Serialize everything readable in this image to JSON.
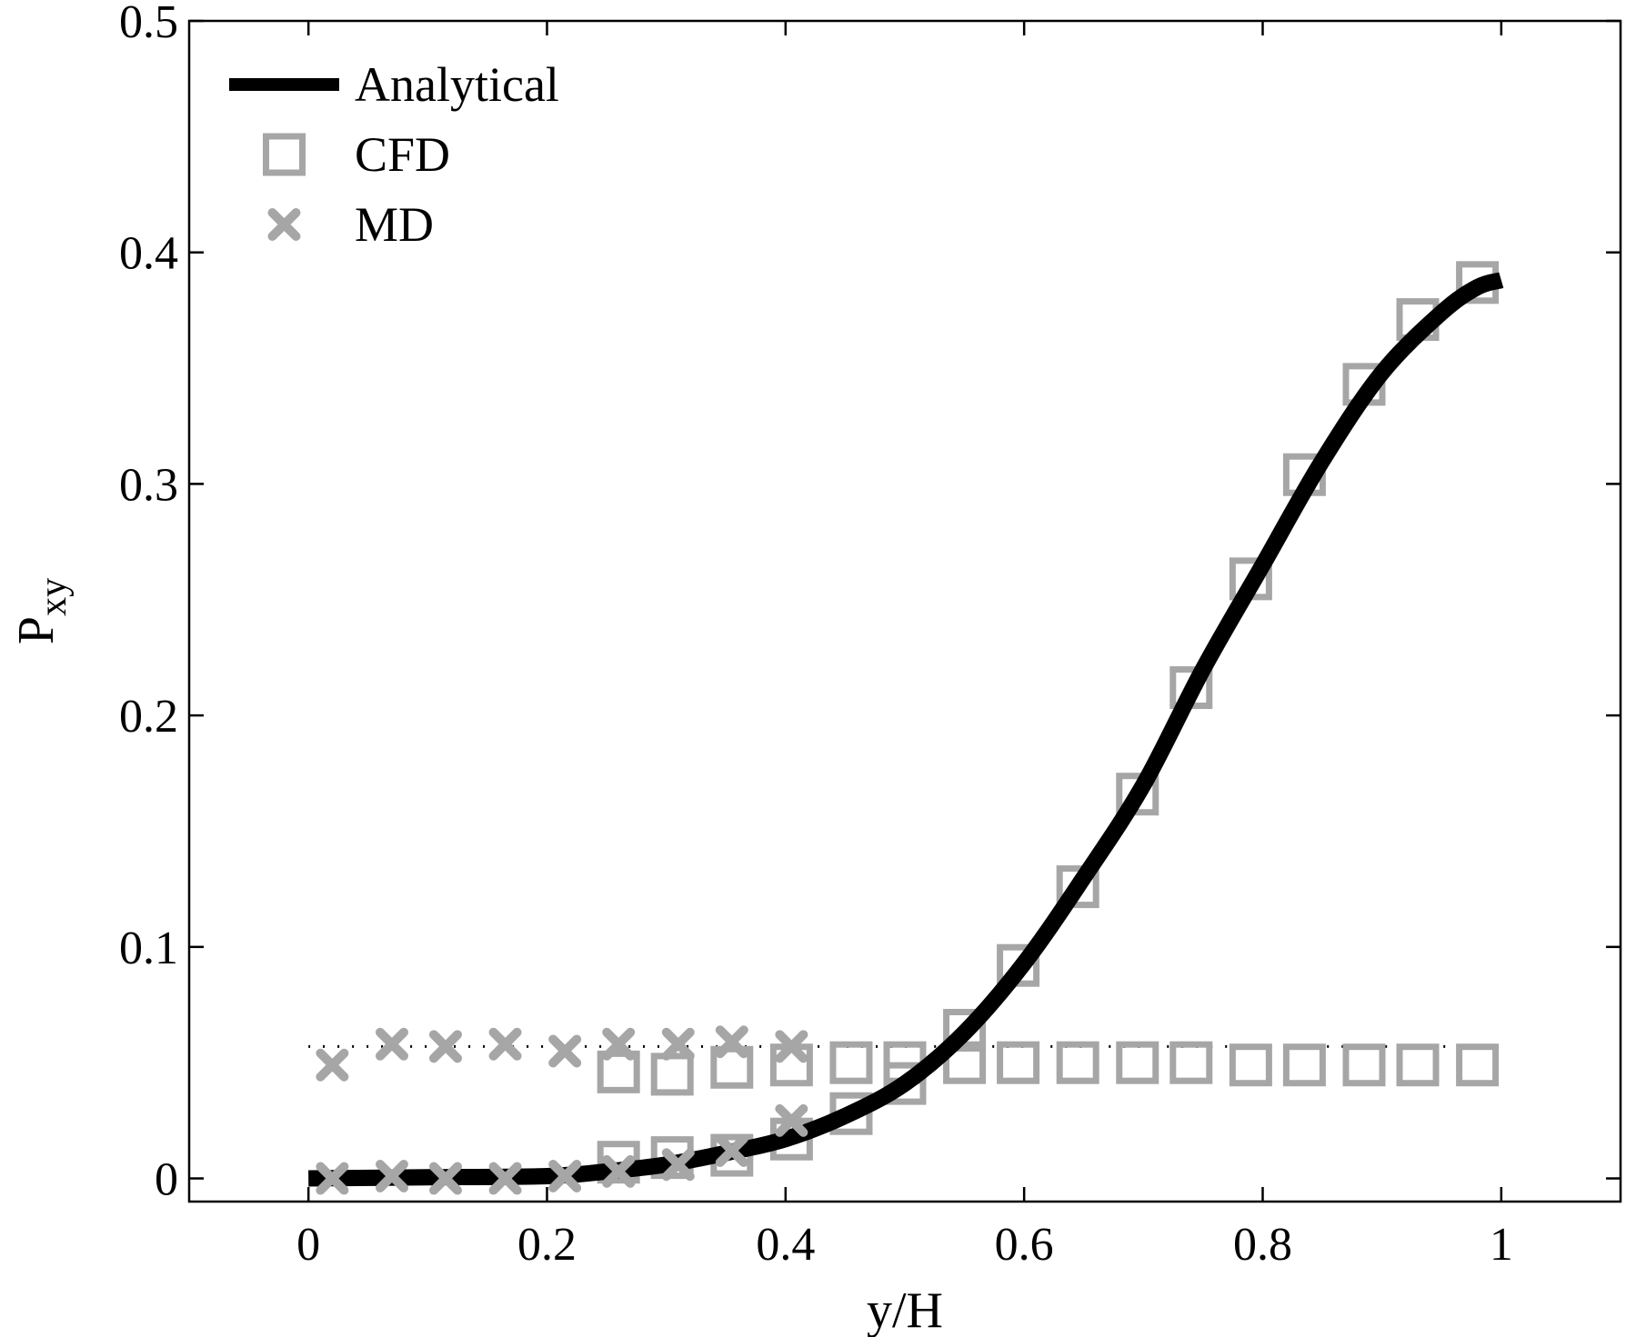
{
  "chart_data": {
    "type": "line",
    "xlabel": "y/H",
    "ylabel": {
      "base": "P",
      "subscript": "xy"
    },
    "xlim": [
      -0.1,
      1.1
    ],
    "ylim": [
      -0.01,
      0.5
    ],
    "xticks": [
      0,
      0.2,
      0.4,
      0.6,
      0.8,
      1
    ],
    "xtick_labels": [
      "0",
      "0.2",
      "0.4",
      "0.6",
      "0.8",
      "1"
    ],
    "yticks": [
      0,
      0.1,
      0.2,
      0.3,
      0.4,
      0.5
    ],
    "ytick_labels": [
      "0",
      "0.1",
      "0.2",
      "0.3",
      "0.4",
      "0.5"
    ],
    "grid": false,
    "legend_position": "top-left",
    "series": [
      {
        "name": "Analytical",
        "style": "line",
        "color": "#000000",
        "x": [
          0,
          0.1,
          0.2,
          0.25,
          0.3,
          0.35,
          0.4,
          0.45,
          0.5,
          0.55,
          0.6,
          0.65,
          0.7,
          0.75,
          0.8,
          0.85,
          0.9,
          0.95,
          0.98,
          1.0
        ],
        "y": [
          0,
          0.0005,
          0.001,
          0.003,
          0.006,
          0.011,
          0.017,
          0.027,
          0.041,
          0.063,
          0.093,
          0.13,
          0.17,
          0.22,
          0.265,
          0.31,
          0.348,
          0.374,
          0.385,
          0.388
        ]
      },
      {
        "name": "CFD",
        "style": "square",
        "color": "#a6a6a6",
        "x": [
          0.26,
          0.305,
          0.355,
          0.405,
          0.455,
          0.5,
          0.55,
          0.595,
          0.645,
          0.695,
          0.74,
          0.79,
          0.835,
          0.885,
          0.93,
          0.98
        ],
        "y": [
          0.007,
          0.009,
          0.01,
          0.017,
          0.028,
          0.041,
          0.064,
          0.092,
          0.126,
          0.166,
          0.212,
          0.259,
          0.304,
          0.343,
          0.371,
          0.387
        ]
      },
      {
        "name": "",
        "style": "square",
        "color": "#a6a6a6",
        "x": [
          0.26,
          0.305,
          0.355,
          0.405,
          0.455,
          0.5,
          0.55,
          0.595,
          0.645,
          0.695,
          0.74,
          0.79,
          0.835,
          0.885,
          0.93,
          0.98
        ],
        "y": [
          0.046,
          0.045,
          0.048,
          0.049,
          0.05,
          0.05,
          0.05,
          0.05,
          0.05,
          0.05,
          0.05,
          0.049,
          0.049,
          0.049,
          0.049,
          0.049
        ]
      },
      {
        "name": "MD",
        "style": "x",
        "color": "#a6a6a6",
        "x": [
          0.02,
          0.07,
          0.115,
          0.165,
          0.215,
          0.26,
          0.31,
          0.355,
          0.405
        ],
        "y": [
          0.0,
          0.001,
          0.0,
          0.0,
          0.001,
          0.003,
          0.006,
          0.012,
          0.025
        ]
      },
      {
        "name": "",
        "style": "x",
        "color": "#a6a6a6",
        "x": [
          0.02,
          0.07,
          0.115,
          0.165,
          0.215,
          0.26,
          0.31,
          0.355,
          0.405
        ],
        "y": [
          0.049,
          0.058,
          0.057,
          0.058,
          0.055,
          0.058,
          0.058,
          0.059,
          0.057
        ]
      },
      {
        "name": "",
        "style": "dotted",
        "color": "#000000",
        "x": [
          0.0,
          1.0
        ],
        "y": [
          0.057,
          0.057
        ]
      }
    ]
  }
}
